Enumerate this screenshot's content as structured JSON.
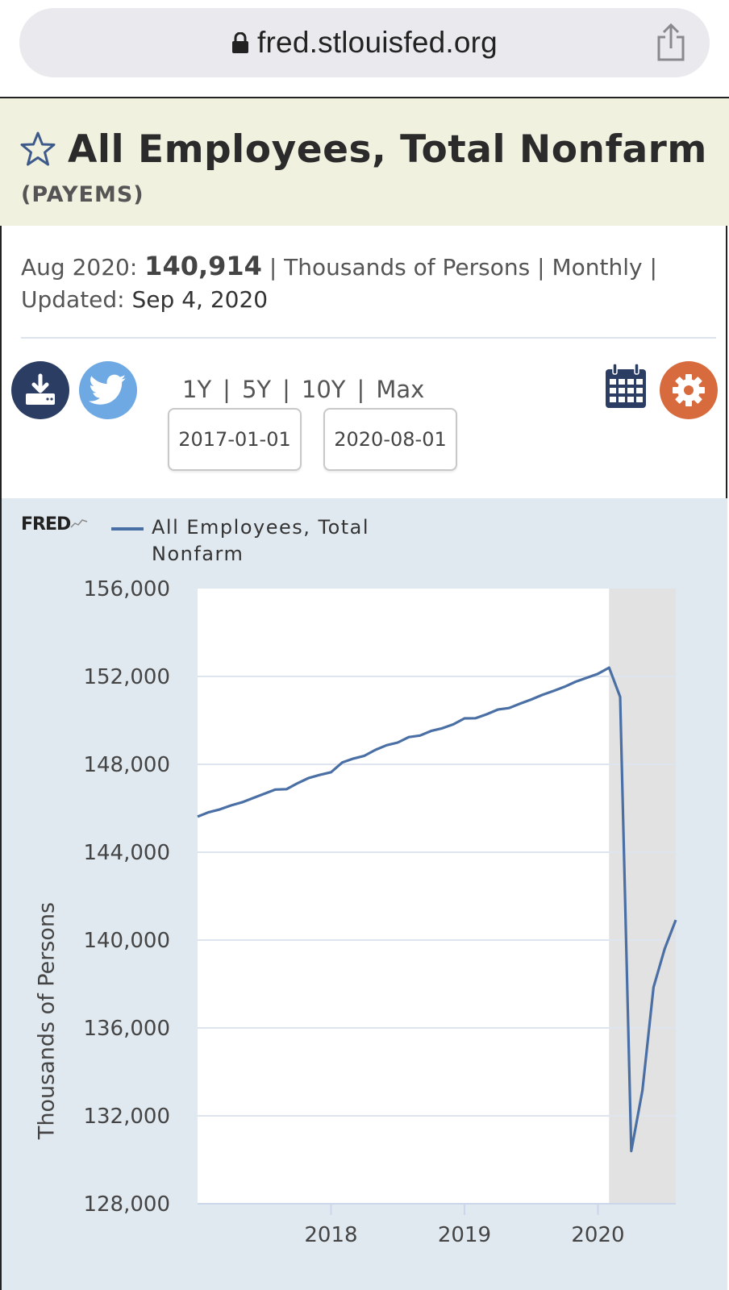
{
  "browser": {
    "url": "fred.stlouisfed.org",
    "lock_icon": "lock-icon",
    "share_icon": "share-icon"
  },
  "series": {
    "title": "All Employees, Total Nonfarm",
    "id": "(PAYEMS)",
    "star_icon": "star-outline-icon"
  },
  "meta": {
    "obs_label": "Aug 2020:",
    "obs_value": "140,914",
    "units": "| Thousands of Persons | Monthly |",
    "updated_label": "Updated:",
    "updated_value": "Sep 4, 2020"
  },
  "toolbar": {
    "download_icon": "download-icon",
    "twitter_icon": "twitter-icon",
    "calendar_icon": "calendar-icon",
    "settings_icon": "gear-icon",
    "ranges": [
      "1Y",
      "5Y",
      "10Y",
      "Max"
    ],
    "start_date": "2017-01-01",
    "end_date": "2020-08-01"
  },
  "chart_data": {
    "type": "line",
    "logo": "FRED",
    "series": [
      {
        "name": "All Employees, Total Nonfarm",
        "color": "#4a6fa5",
        "x": [
          "2017-01",
          "2017-02",
          "2017-03",
          "2017-04",
          "2017-05",
          "2017-06",
          "2017-07",
          "2017-08",
          "2017-09",
          "2017-10",
          "2017-11",
          "2017-12",
          "2018-01",
          "2018-02",
          "2018-03",
          "2018-04",
          "2018-05",
          "2018-06",
          "2018-07",
          "2018-08",
          "2018-09",
          "2018-10",
          "2018-11",
          "2018-12",
          "2019-01",
          "2019-02",
          "2019-03",
          "2019-04",
          "2019-05",
          "2019-06",
          "2019-07",
          "2019-08",
          "2019-09",
          "2019-10",
          "2019-11",
          "2019-12",
          "2020-01",
          "2020-02",
          "2020-03",
          "2020-04",
          "2020-05",
          "2020-06",
          "2020-07",
          "2020-08"
        ],
        "values": [
          145620,
          145820,
          145950,
          146130,
          146270,
          146470,
          146660,
          146850,
          146870,
          147140,
          147380,
          147520,
          147640,
          148080,
          148260,
          148390,
          148660,
          148870,
          148990,
          149240,
          149310,
          149520,
          149640,
          149820,
          150090,
          150100,
          150280,
          150490,
          150560,
          150760,
          150950,
          151160,
          151340,
          151530,
          151760,
          151940,
          152120,
          152400,
          151070,
          130400,
          133150,
          137850,
          139600,
          140914
        ]
      }
    ],
    "recession_shading": {
      "start": "2020-02",
      "end": "2020-08",
      "color": "#e2e2e2"
    },
    "xlabel": "",
    "ylabel": "Thousands of Persons",
    "ylim": [
      128000,
      156000
    ],
    "yticks": [
      128000,
      132000,
      136000,
      140000,
      144000,
      148000,
      152000,
      156000
    ],
    "ytick_labels": [
      "128,000",
      "132,000",
      "136,000",
      "140,000",
      "144,000",
      "148,000",
      "152,000",
      "156,000"
    ],
    "xticks": [
      "2018-01",
      "2019-01",
      "2020-01"
    ],
    "xtick_labels": [
      "2018",
      "2019",
      "2020"
    ],
    "grid": true,
    "legend": "top-left"
  }
}
